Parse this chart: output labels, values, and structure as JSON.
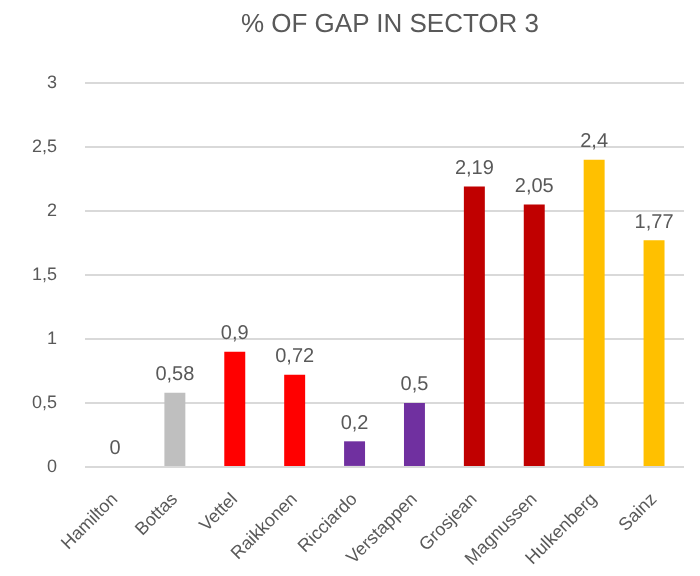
{
  "chart_data": {
    "type": "bar",
    "title": "% OF GAP IN SECTOR 3",
    "categories": [
      "Hamilton",
      "Bottas",
      "Vettel",
      "Raikkonen",
      "Ricciardo",
      "Verstappen",
      "Grosjean",
      "Magnussen",
      "Hulkenberg",
      "Sainz"
    ],
    "values": [
      0,
      0.58,
      0.9,
      0.72,
      0.2,
      0.5,
      2.19,
      2.05,
      2.4,
      1.77
    ],
    "colors": [
      "#bfbfbf",
      "#bfbfbf",
      "#ff0000",
      "#ff0000",
      "#7030a0",
      "#7030a0",
      "#c00000",
      "#c00000",
      "#ffc000",
      "#ffc000"
    ],
    "value_labels": [
      "0",
      "0,58",
      "0,9",
      "0,72",
      "0,2",
      "0,5",
      "2,19",
      "2,05",
      "2,4",
      "1,77"
    ],
    "ylim": [
      0,
      3
    ],
    "yticks": [
      {
        "value": 0,
        "label": "0"
      },
      {
        "value": 0.5,
        "label": "0,5"
      },
      {
        "value": 1,
        "label": "1"
      },
      {
        "value": 1.5,
        "label": "1,5"
      },
      {
        "value": 2,
        "label": "2"
      },
      {
        "value": 2.5,
        "label": "2,5"
      },
      {
        "value": 3,
        "label": "3"
      }
    ],
    "grid": "y",
    "legend": false
  }
}
